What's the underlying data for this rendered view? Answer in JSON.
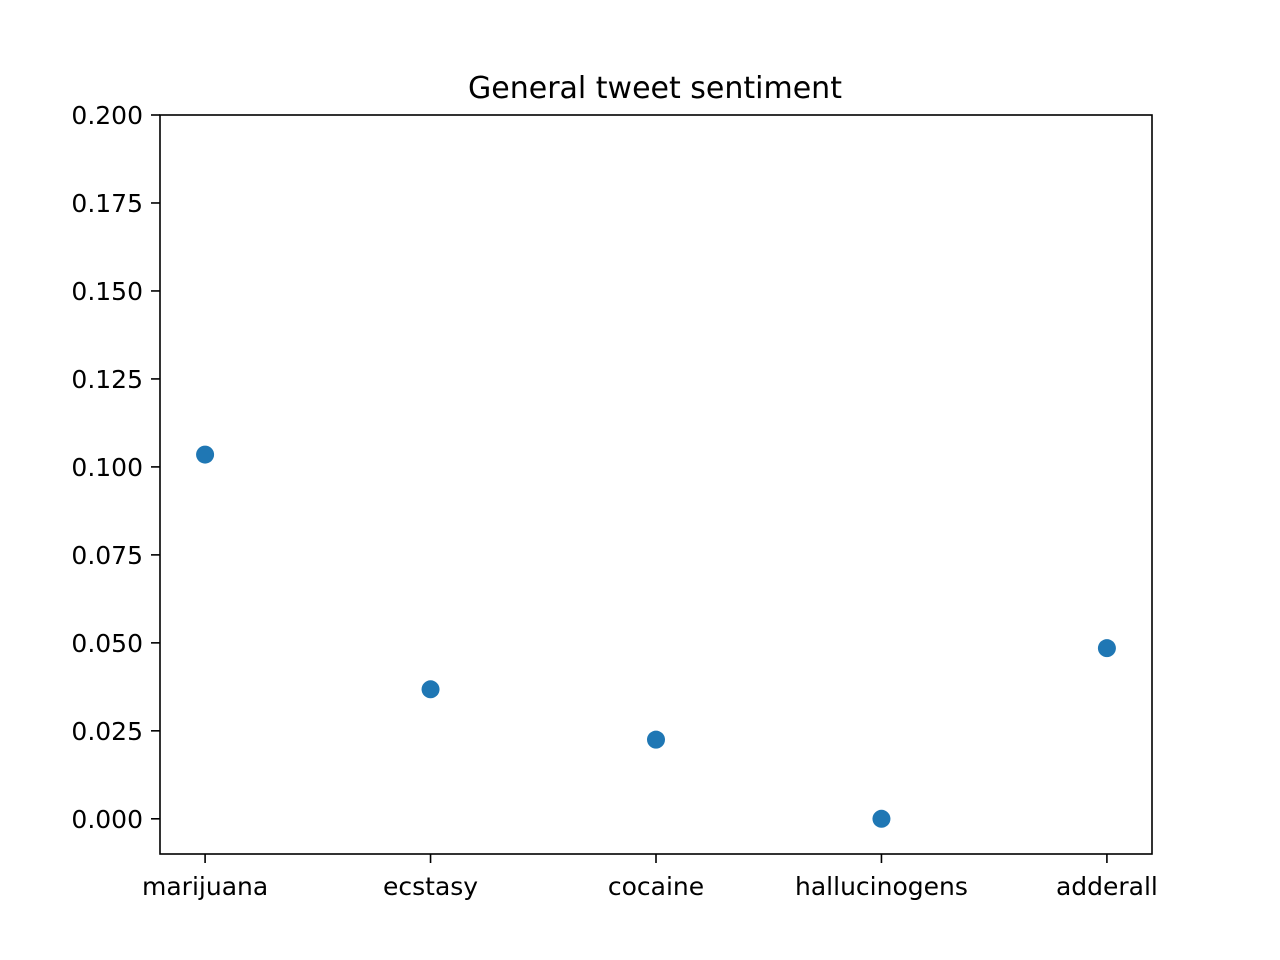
{
  "chart_data": {
    "type": "scatter",
    "title": "General tweet sentiment",
    "xlabel": "",
    "ylabel": "",
    "categories": [
      "marijuana",
      "ecstasy",
      "cocaine",
      "hallucinogens",
      "adderall"
    ],
    "values": [
      0.1035,
      0.0368,
      0.0225,
      0.0,
      0.0485
    ],
    "ylim": [
      -0.01,
      0.2
    ],
    "yticks": [
      0.0,
      0.025,
      0.05,
      0.075,
      0.1,
      0.125,
      0.15,
      0.175,
      0.2
    ],
    "ytick_labels": [
      "0.000",
      "0.025",
      "0.050",
      "0.075",
      "0.100",
      "0.125",
      "0.150",
      "0.175",
      "0.200"
    ],
    "grid": false,
    "legend": "none",
    "colors": {
      "points": "#1f77b4",
      "axes": "#000000"
    }
  }
}
